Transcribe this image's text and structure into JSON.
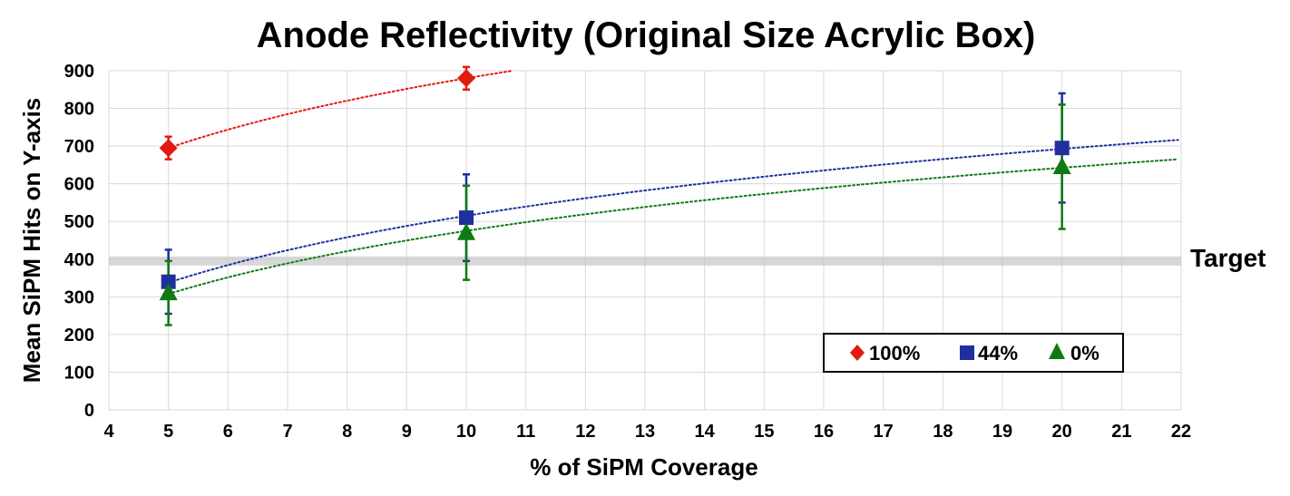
{
  "chart_data": {
    "type": "scatter",
    "title": "Anode Reflectivity (Original Size Acrylic Box)",
    "xlabel": "% of SiPM Coverage",
    "ylabel": "Mean SiPM Hits on Y-axis",
    "xlim": [
      4,
      22
    ],
    "ylim": [
      0,
      900
    ],
    "xticks": [
      4,
      5,
      6,
      7,
      8,
      9,
      10,
      11,
      12,
      13,
      14,
      15,
      16,
      17,
      18,
      19,
      20,
      21,
      22
    ],
    "yticks": [
      0,
      100,
      200,
      300,
      400,
      500,
      600,
      700,
      800,
      900
    ],
    "grid": true,
    "legend_position": "bottom-right",
    "target": {
      "label": "Target",
      "value": 395
    },
    "series": [
      {
        "name": "100%",
        "marker": "diamond",
        "color": "#e21b12",
        "trendline": "logarithmic",
        "x": [
          5,
          10
        ],
        "y": [
          695,
          880
        ],
        "err": [
          30,
          30
        ]
      },
      {
        "name": "44%",
        "marker": "square",
        "color": "#1f2f9e",
        "trendline": "logarithmic",
        "x": [
          5,
          10,
          20
        ],
        "y": [
          340,
          510,
          695
        ],
        "err": [
          85,
          115,
          145
        ]
      },
      {
        "name": "0%",
        "marker": "triangle",
        "color": "#0f7a12",
        "trendline": "logarithmic",
        "x": [
          5,
          10,
          20
        ],
        "y": [
          310,
          470,
          645
        ],
        "err": [
          85,
          125,
          165
        ]
      }
    ]
  }
}
